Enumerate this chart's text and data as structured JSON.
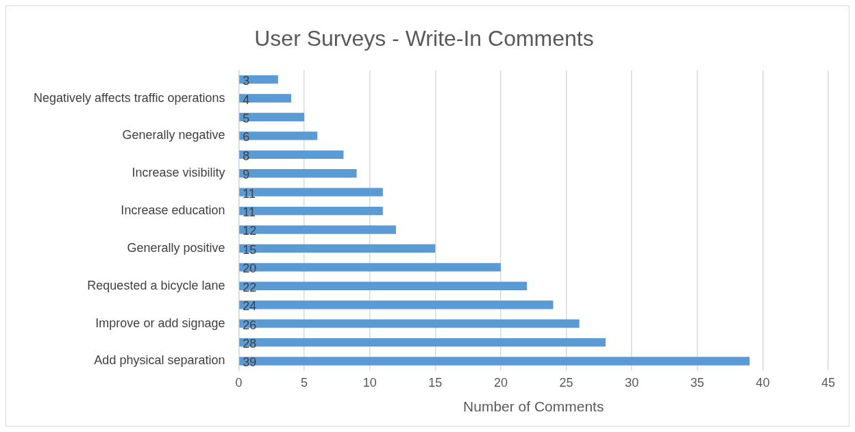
{
  "chart_data": {
    "type": "bar",
    "orientation": "horizontal",
    "title": "User Surveys - Write-In Comments",
    "xlabel": "Number of Comments",
    "categories": [
      null,
      "Negatively affects traffic operations",
      null,
      "Generally negative",
      null,
      "Increase visibility",
      null,
      "Increase education",
      null,
      "Generally positive",
      null,
      "Requested a bicycle lane",
      null,
      "Improve or add signage",
      null,
      "Add physical separation"
    ],
    "values": [
      3,
      4,
      5,
      6,
      8,
      9,
      11,
      11,
      12,
      15,
      20,
      22,
      24,
      26,
      28,
      39
    ],
    "color": "#5b9bd5",
    "xlim": [
      0,
      45
    ],
    "xticks": [
      0,
      5,
      10,
      15,
      20,
      25,
      30,
      35,
      40,
      45
    ],
    "grid": "x",
    "legend": false,
    "data_labels": true
  }
}
